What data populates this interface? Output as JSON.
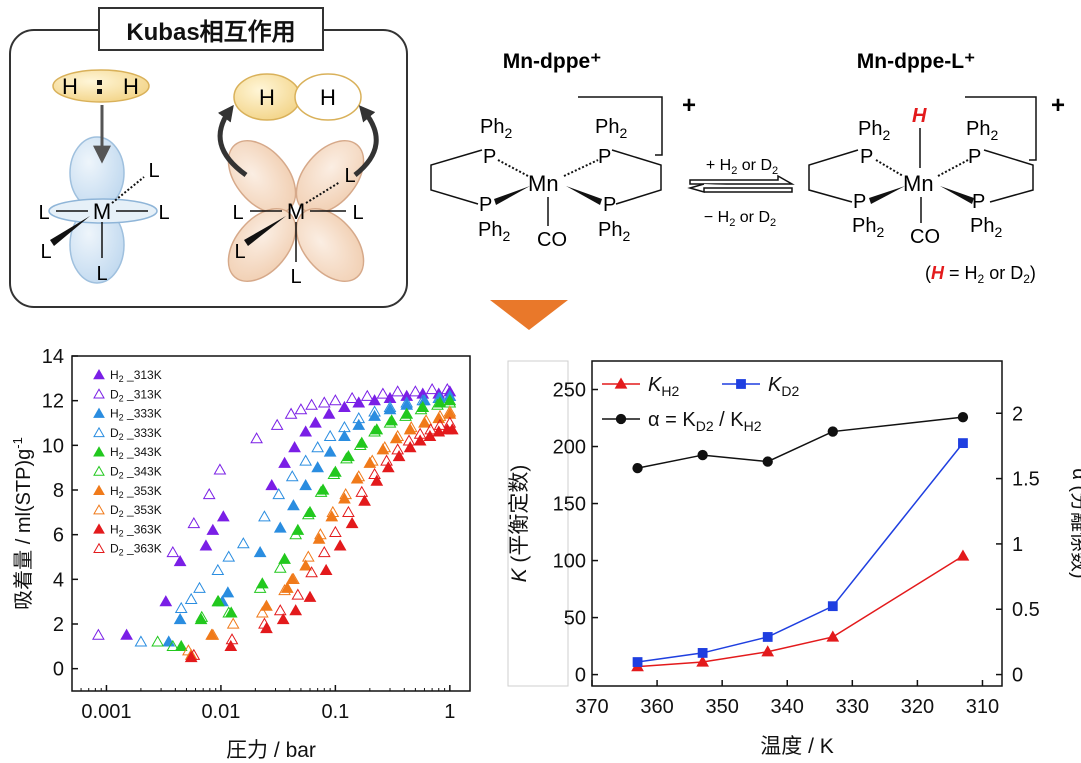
{
  "kubas": {
    "title": "Kubas相互作用",
    "h": "H",
    "l": "L",
    "m": "M"
  },
  "scheme": {
    "reactant_title": "Mn-dppe⁺",
    "product_title": "Mn-dppe-L⁺",
    "ph2": "Ph",
    "ph2_sub": "2",
    "p": "P",
    "mn": "Mn",
    "co": "CO",
    "plus": "+",
    "h_ligand": "H",
    "forward": "+ H",
    "forward_sub": "2",
    "forward_rest": " or D",
    "forward_sub2": "2",
    "reverse": "− H",
    "reverse_sub": "2",
    "reverse_rest": " or D",
    "reverse_sub2": "2",
    "note_prefix": "(",
    "note_h": "H",
    "note_mid": " = H",
    "note_sub": "2",
    "note_mid2": " or D",
    "note_sub2": "2",
    "note_suffix": ")"
  },
  "colors": {
    "arrow": "#e9782a",
    "red": "#e31a1c",
    "blue": "#1f3fe0",
    "purple": "#7a1fe6",
    "lightblue": "#2a8de0",
    "green": "#22c81e",
    "orange": "#f07a1a",
    "h_yellow": "#f7dfa0",
    "lobe_blue": "#d7e6f4",
    "lobe_peach": "#f6dcc6"
  },
  "chart_data": [
    {
      "type": "scatter",
      "xlabel": "圧力 / bar",
      "ylabel": "吸着量 / ml(STP)g",
      "ylabel_sup": "-1",
      "x_scale": "log",
      "xlim": [
        0.0005,
        1.5
      ],
      "ylim": [
        -1,
        14
      ],
      "xticks": [
        0.001,
        0.01,
        0.1,
        1
      ],
      "xtick_labels": [
        "0.001",
        "0.01",
        "0.1",
        "1"
      ],
      "yticks": [
        0,
        2,
        4,
        6,
        8,
        10,
        12,
        14
      ],
      "ytick_labels": [
        "0",
        "2",
        "4",
        "6",
        "8",
        "10",
        "12",
        "14"
      ],
      "legend_position": "top-left",
      "series": [
        {
          "name": "H",
          "sub": "2",
          "suffix": " _313K",
          "color": "#7a1fe6",
          "filled": true,
          "points": [
            [
              0.0015,
              1.5
            ],
            [
              0.0033,
              3.0
            ],
            [
              0.0044,
              4.8
            ],
            [
              0.0074,
              5.5
            ],
            [
              0.0085,
              6.2
            ],
            [
              0.0105,
              6.8
            ],
            [
              0.0278,
              8.2
            ],
            [
              0.036,
              9.2
            ],
            [
              0.044,
              9.9
            ],
            [
              0.055,
              10.6
            ],
            [
              0.067,
              11.0
            ],
            [
              0.088,
              11.4
            ],
            [
              0.12,
              11.7
            ],
            [
              0.16,
              11.9
            ],
            [
              0.22,
              12.0
            ],
            [
              0.3,
              12.1
            ],
            [
              0.42,
              12.2
            ],
            [
              0.58,
              12.3
            ],
            [
              0.8,
              12.3
            ],
            [
              1.0,
              12.4
            ]
          ]
        },
        {
          "name": "D",
          "sub": "2",
          "suffix": " _313K",
          "color": "#7a1fe6",
          "filled": false,
          "points": [
            [
              0.00085,
              1.5
            ],
            [
              0.0038,
              5.2
            ],
            [
              0.0058,
              6.5
            ],
            [
              0.0079,
              7.8
            ],
            [
              0.0098,
              8.9
            ],
            [
              0.0205,
              10.3
            ],
            [
              0.031,
              10.9
            ],
            [
              0.041,
              11.4
            ],
            [
              0.05,
              11.6
            ],
            [
              0.062,
              11.8
            ],
            [
              0.08,
              11.9
            ],
            [
              0.1,
              12.0
            ],
            [
              0.14,
              12.1
            ],
            [
              0.19,
              12.2
            ],
            [
              0.26,
              12.3
            ],
            [
              0.35,
              12.4
            ],
            [
              0.5,
              12.4
            ],
            [
              0.7,
              12.5
            ],
            [
              0.95,
              12.5
            ]
          ]
        },
        {
          "name": "H",
          "sub": "2",
          "suffix": " _333K",
          "color": "#2a8de0",
          "filled": true,
          "points": [
            [
              0.0035,
              1.2
            ],
            [
              0.0044,
              2.2
            ],
            [
              0.0103,
              3.0
            ],
            [
              0.0115,
              3.4
            ],
            [
              0.022,
              5.2
            ],
            [
              0.033,
              6.3
            ],
            [
              0.043,
              7.3
            ],
            [
              0.055,
              8.2
            ],
            [
              0.07,
              9.0
            ],
            [
              0.09,
              9.7
            ],
            [
              0.12,
              10.4
            ],
            [
              0.16,
              10.9
            ],
            [
              0.22,
              11.3
            ],
            [
              0.3,
              11.6
            ],
            [
              0.42,
              11.8
            ],
            [
              0.6,
              12.0
            ],
            [
              0.82,
              12.1
            ],
            [
              1.0,
              12.2
            ]
          ]
        },
        {
          "name": "D",
          "sub": "2",
          "suffix": " _333K",
          "color": "#2a8de0",
          "filled": false,
          "points": [
            [
              0.002,
              1.2
            ],
            [
              0.0045,
              2.7
            ],
            [
              0.0055,
              3.1
            ],
            [
              0.0065,
              3.6
            ],
            [
              0.0094,
              4.4
            ],
            [
              0.0117,
              5.0
            ],
            [
              0.0157,
              5.6
            ],
            [
              0.024,
              6.8
            ],
            [
              0.032,
              7.8
            ],
            [
              0.042,
              8.6
            ],
            [
              0.055,
              9.3
            ],
            [
              0.07,
              9.9
            ],
            [
              0.09,
              10.4
            ],
            [
              0.12,
              10.8
            ],
            [
              0.16,
              11.2
            ],
            [
              0.22,
              11.5
            ],
            [
              0.3,
              11.7
            ],
            [
              0.42,
              11.9
            ],
            [
              0.58,
              12.0
            ],
            [
              0.8,
              12.1
            ],
            [
              1.0,
              12.2
            ]
          ]
        },
        {
          "name": "H",
          "sub": "2",
          "suffix": " _343K",
          "color": "#22c81e",
          "filled": true,
          "points": [
            [
              0.0045,
              1.0
            ],
            [
              0.0067,
              2.2
            ],
            [
              0.0095,
              3.0
            ],
            [
              0.0123,
              2.5
            ],
            [
              0.023,
              3.8
            ],
            [
              0.036,
              4.9
            ],
            [
              0.047,
              6.2
            ],
            [
              0.06,
              7.0
            ],
            [
              0.078,
              8.0
            ],
            [
              0.1,
              8.8
            ],
            [
              0.13,
              9.5
            ],
            [
              0.17,
              10.1
            ],
            [
              0.23,
              10.7
            ],
            [
              0.31,
              11.1
            ],
            [
              0.42,
              11.4
            ],
            [
              0.58,
              11.7
            ],
            [
              0.82,
              11.9
            ],
            [
              1.0,
              12.0
            ]
          ]
        },
        {
          "name": "D",
          "sub": "2",
          "suffix": " _343K",
          "color": "#22c81e",
          "filled": false,
          "points": [
            [
              0.0028,
              1.2
            ],
            [
              0.0038,
              1.0
            ],
            [
              0.0068,
              2.3
            ],
            [
              0.0094,
              3.0
            ],
            [
              0.0117,
              2.5
            ],
            [
              0.022,
              3.6
            ],
            [
              0.033,
              4.5
            ],
            [
              0.045,
              6.0
            ],
            [
              0.058,
              6.9
            ],
            [
              0.075,
              7.9
            ],
            [
              0.097,
              8.7
            ],
            [
              0.125,
              9.4
            ],
            [
              0.165,
              10.0
            ],
            [
              0.22,
              10.6
            ],
            [
              0.3,
              11.0
            ],
            [
              0.41,
              11.3
            ],
            [
              0.56,
              11.6
            ],
            [
              0.78,
              11.8
            ],
            [
              1.0,
              11.9
            ]
          ]
        },
        {
          "name": "H",
          "sub": "2",
          "suffix": " _353K",
          "color": "#f07a1a",
          "filled": true,
          "points": [
            [
              0.0055,
              0.6
            ],
            [
              0.0083,
              1.5
            ],
            [
              0.025,
              2.8
            ],
            [
              0.038,
              3.6
            ],
            [
              0.042,
              4.0
            ],
            [
              0.055,
              4.6
            ],
            [
              0.072,
              5.8
            ],
            [
              0.093,
              6.8
            ],
            [
              0.12,
              7.6
            ],
            [
              0.155,
              8.5
            ],
            [
              0.2,
              9.2
            ],
            [
              0.26,
              9.8
            ],
            [
              0.34,
              10.3
            ],
            [
              0.45,
              10.7
            ],
            [
              0.6,
              11.0
            ],
            [
              0.8,
              11.2
            ],
            [
              1.0,
              11.4
            ]
          ]
        },
        {
          "name": "D",
          "sub": "2",
          "suffix": " _353K",
          "color": "#f07a1a",
          "filled": false,
          "points": [
            [
              0.0052,
              0.8
            ],
            [
              0.0085,
              1.5
            ],
            [
              0.0128,
              2.0
            ],
            [
              0.023,
              2.5
            ],
            [
              0.036,
              3.5
            ],
            [
              0.043,
              4.0
            ],
            [
              0.058,
              5.0
            ],
            [
              0.074,
              6.0
            ],
            [
              0.095,
              7.0
            ],
            [
              0.123,
              7.8
            ],
            [
              0.16,
              8.6
            ],
            [
              0.21,
              9.3
            ],
            [
              0.27,
              9.9
            ],
            [
              0.35,
              10.4
            ],
            [
              0.46,
              10.8
            ],
            [
              0.62,
              11.1
            ],
            [
              0.82,
              11.3
            ],
            [
              1.0,
              11.5
            ]
          ]
        },
        {
          "name": "H",
          "sub": "2",
          "suffix": " _363K",
          "color": "#e31a1c",
          "filled": true,
          "points": [
            [
              0.0055,
              0.5
            ],
            [
              0.0122,
              1.0
            ],
            [
              0.025,
              1.8
            ],
            [
              0.035,
              2.2
            ],
            [
              0.045,
              2.6
            ],
            [
              0.06,
              3.2
            ],
            [
              0.083,
              4.4
            ],
            [
              0.11,
              5.5
            ],
            [
              0.14,
              6.5
            ],
            [
              0.18,
              7.5
            ],
            [
              0.23,
              8.4
            ],
            [
              0.29,
              9.0
            ],
            [
              0.36,
              9.5
            ],
            [
              0.45,
              9.9
            ],
            [
              0.55,
              10.2
            ],
            [
              0.67,
              10.4
            ],
            [
              0.8,
              10.6
            ],
            [
              0.95,
              10.7
            ],
            [
              1.05,
              10.7
            ]
          ]
        },
        {
          "name": "D",
          "sub": "2",
          "suffix": " _363K",
          "color": "#e31a1c",
          "filled": false,
          "points": [
            [
              0.0058,
              0.6
            ],
            [
              0.0125,
              1.3
            ],
            [
              0.024,
              2.0
            ],
            [
              0.033,
              2.6
            ],
            [
              0.047,
              3.3
            ],
            [
              0.062,
              4.3
            ],
            [
              0.08,
              5.2
            ],
            [
              0.1,
              6.1
            ],
            [
              0.13,
              7.0
            ],
            [
              0.17,
              7.9
            ],
            [
              0.22,
              8.7
            ],
            [
              0.28,
              9.3
            ],
            [
              0.35,
              9.8
            ],
            [
              0.44,
              10.2
            ],
            [
              0.55,
              10.5
            ],
            [
              0.68,
              10.7
            ],
            [
              0.82,
              10.9
            ],
            [
              1.0,
              11.0
            ]
          ]
        }
      ]
    },
    {
      "type": "line",
      "xlabel": "温度 / K",
      "ylabel_italic": "K",
      "ylabel": " (平衡定数)",
      "y2label": "α (分離係数)",
      "x_reversed": true,
      "xlim": [
        370,
        307
      ],
      "ylim": [
        -10,
        275
      ],
      "y2lim": [
        -0.0875,
        2.4
      ],
      "xticks": [
        370,
        360,
        350,
        340,
        330,
        320,
        310
      ],
      "yticks": [
        0,
        50,
        100,
        150,
        200,
        250
      ],
      "y2ticks": [
        0,
        0.5,
        1,
        1.5,
        2
      ],
      "y2tick_labels": [
        "0",
        "0.5",
        "1",
        "1.5",
        "2"
      ],
      "legend_position": "top-left",
      "x": [
        363,
        353,
        343,
        333,
        313
      ],
      "series": [
        {
          "name": "K",
          "sub": "H2",
          "axis": "left",
          "color": "#e31a1c",
          "marker": "triangle",
          "values": [
            7,
            11,
            20,
            33,
            104
          ]
        },
        {
          "name": "K",
          "sub": "D2",
          "axis": "left",
          "color": "#1f3fe0",
          "marker": "square",
          "values": [
            11,
            19,
            33,
            60,
            203
          ]
        },
        {
          "name": "α = K",
          "sub": "D2",
          "name2": " / K",
          "sub2": "H2",
          "axis": "right",
          "color": "#111111",
          "marker": "circle",
          "values": [
            1.58,
            1.68,
            1.63,
            1.86,
            1.97
          ]
        }
      ]
    }
  ]
}
